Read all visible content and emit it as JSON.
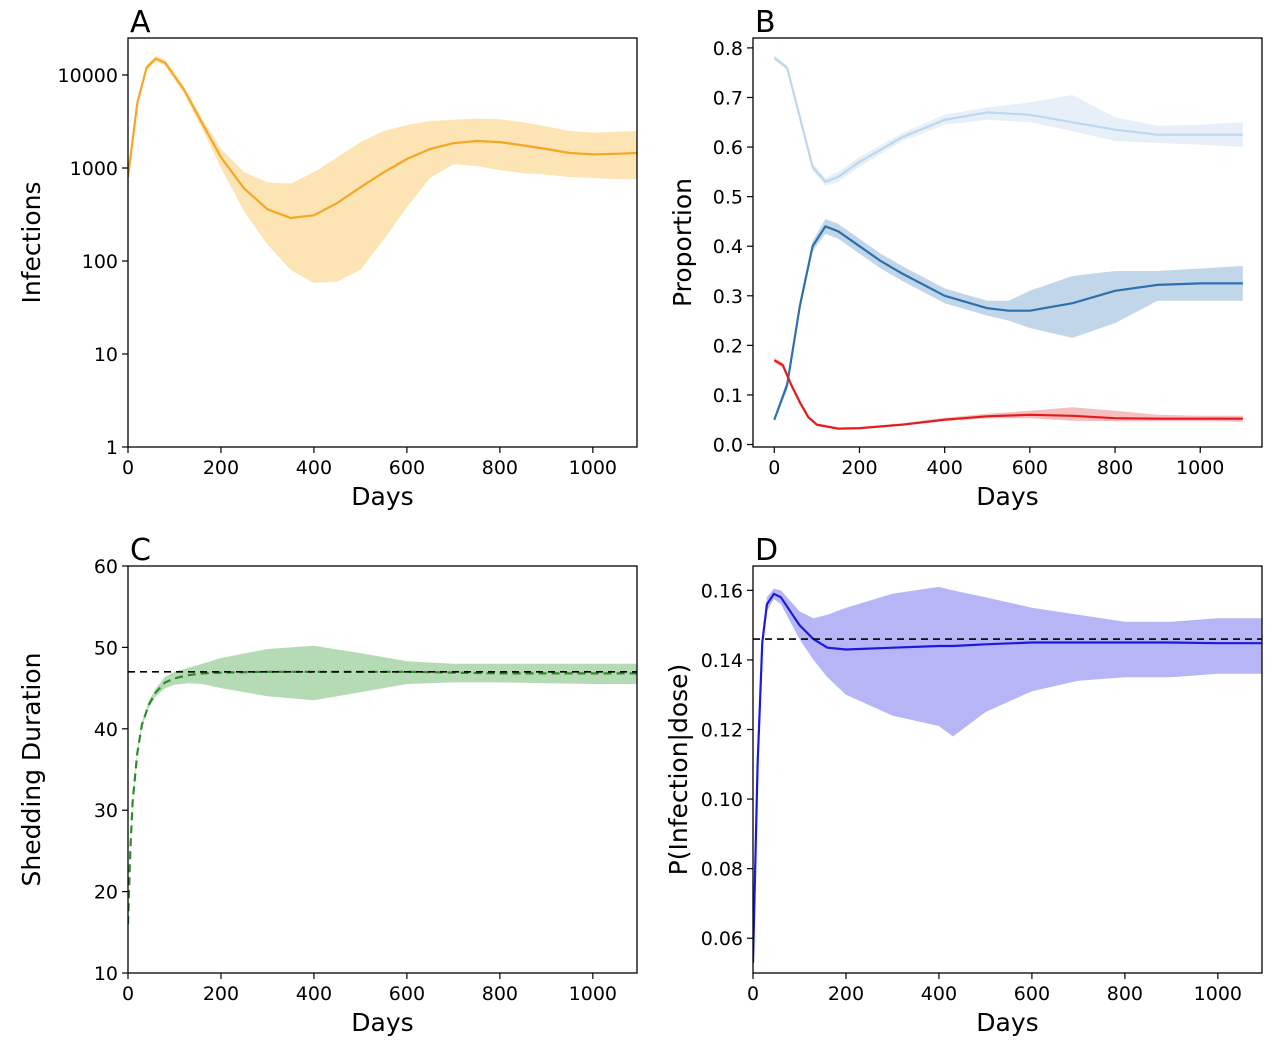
{
  "chart_data": [
    {
      "panel": "A",
      "type": "line",
      "xlabel": "Days",
      "ylabel": "Infections",
      "yscale": "log",
      "xlim": [
        0,
        1095
      ],
      "ylim": [
        1,
        25000
      ],
      "xticks": [
        "0",
        "200",
        "400",
        "600",
        "800",
        "1000"
      ],
      "yticks": [
        "1",
        "10",
        "100",
        "1000",
        "10000"
      ],
      "grid": false,
      "series": [
        {
          "color": "#f5a623",
          "band_color": "#fddfa8",
          "x": [
            0,
            20,
            40,
            60,
            80,
            120,
            160,
            200,
            250,
            300,
            350,
            400,
            450,
            500,
            550,
            600,
            650,
            700,
            750,
            800,
            850,
            900,
            950,
            1000,
            1050,
            1095
          ],
          "y": [
            800,
            5000,
            12000,
            15000,
            13500,
            7000,
            3000,
            1300,
            600,
            360,
            290,
            310,
            420,
            620,
            900,
            1250,
            1600,
            1850,
            1950,
            1900,
            1750,
            1600,
            1450,
            1400,
            1420,
            1450
          ],
          "lower": [
            750,
            4600,
            11200,
            14000,
            12500,
            6400,
            2600,
            1000,
            340,
            150,
            80,
            58,
            60,
            80,
            170,
            380,
            780,
            1100,
            1050,
            950,
            880,
            850,
            800,
            780,
            760,
            760
          ],
          "upper": [
            850,
            5400,
            12800,
            16000,
            14500,
            7600,
            3400,
            1600,
            900,
            700,
            680,
            900,
            1300,
            1900,
            2500,
            2900,
            3200,
            3300,
            3400,
            3350,
            3100,
            2800,
            2500,
            2400,
            2450,
            2500
          ]
        }
      ]
    },
    {
      "panel": "B",
      "type": "line",
      "xlabel": "Days",
      "ylabel": "Proportion",
      "xlim": [
        -50,
        1145
      ],
      "ylim": [
        -0.005,
        0.82
      ],
      "xticks": [
        "0",
        "200",
        "400",
        "600",
        "800",
        "1000"
      ],
      "yticks": [
        "0.0",
        "0.1",
        "0.2",
        "0.3",
        "0.4",
        "0.5",
        "0.6",
        "0.7",
        "0.8"
      ],
      "grid": false,
      "series": [
        {
          "color": "#bdd7ee",
          "band_color": "#e3edf8",
          "x": [
            0,
            30,
            60,
            90,
            120,
            150,
            200,
            300,
            400,
            500,
            600,
            700,
            800,
            900,
            1000,
            1100
          ],
          "y": [
            0.78,
            0.76,
            0.66,
            0.56,
            0.53,
            0.54,
            0.57,
            0.62,
            0.655,
            0.67,
            0.665,
            0.65,
            0.635,
            0.625,
            0.625,
            0.625
          ],
          "lower": [
            0.775,
            0.755,
            0.655,
            0.553,
            0.522,
            0.53,
            0.56,
            0.612,
            0.645,
            0.655,
            0.65,
            0.632,
            0.612,
            0.608,
            0.605,
            0.6
          ],
          "upper": [
            0.785,
            0.765,
            0.665,
            0.567,
            0.538,
            0.55,
            0.58,
            0.628,
            0.665,
            0.68,
            0.69,
            0.705,
            0.66,
            0.643,
            0.645,
            0.65
          ]
        },
        {
          "color": "#2e6fad",
          "band_color": "#b7cfe6",
          "x": [
            0,
            30,
            60,
            90,
            120,
            150,
            200,
            250,
            300,
            400,
            500,
            550,
            600,
            700,
            800,
            900,
            1000,
            1100
          ],
          "y": [
            0.05,
            0.12,
            0.28,
            0.4,
            0.44,
            0.43,
            0.4,
            0.37,
            0.345,
            0.3,
            0.275,
            0.27,
            0.27,
            0.285,
            0.31,
            0.322,
            0.325,
            0.325
          ],
          "lower": [
            0.045,
            0.11,
            0.27,
            0.39,
            0.425,
            0.415,
            0.385,
            0.355,
            0.33,
            0.285,
            0.26,
            0.25,
            0.235,
            0.215,
            0.245,
            0.29,
            0.29,
            0.29
          ],
          "upper": [
            0.055,
            0.13,
            0.29,
            0.41,
            0.455,
            0.445,
            0.415,
            0.385,
            0.36,
            0.315,
            0.29,
            0.29,
            0.31,
            0.34,
            0.35,
            0.35,
            0.355,
            0.36
          ]
        },
        {
          "color": "#e41a1c",
          "band_color": "#f4b3b4",
          "x": [
            0,
            20,
            40,
            60,
            80,
            100,
            150,
            200,
            300,
            400,
            500,
            600,
            700,
            800,
            900,
            1000,
            1100
          ],
          "y": [
            0.17,
            0.16,
            0.12,
            0.085,
            0.055,
            0.04,
            0.032,
            0.033,
            0.04,
            0.05,
            0.057,
            0.06,
            0.058,
            0.053,
            0.052,
            0.052,
            0.052
          ],
          "lower": [
            0.165,
            0.155,
            0.115,
            0.08,
            0.052,
            0.037,
            0.03,
            0.031,
            0.038,
            0.047,
            0.053,
            0.053,
            0.048,
            0.047,
            0.047,
            0.047,
            0.046
          ],
          "upper": [
            0.175,
            0.165,
            0.125,
            0.09,
            0.058,
            0.043,
            0.035,
            0.036,
            0.043,
            0.054,
            0.062,
            0.068,
            0.075,
            0.068,
            0.06,
            0.058,
            0.058
          ]
        }
      ]
    },
    {
      "panel": "C",
      "type": "line",
      "xlabel": "Days",
      "ylabel": "Shedding Duration",
      "xlim": [
        0,
        1095
      ],
      "ylim": [
        10,
        60
      ],
      "xticks": [
        "0",
        "200",
        "400",
        "600",
        "800",
        "1000"
      ],
      "yticks": [
        "10",
        "20",
        "30",
        "40",
        "50",
        "60"
      ],
      "grid": false,
      "reference_line": 47,
      "series": [
        {
          "color": "#2e8b2e",
          "band_color": "#a8d5a8",
          "line_style": "dashed",
          "x": [
            0,
            5,
            10,
            20,
            30,
            45,
            60,
            80,
            100,
            130,
            160,
            200,
            300,
            400,
            500,
            600,
            700,
            800,
            900,
            1000,
            1095
          ],
          "y": [
            16,
            25,
            31,
            37,
            40.5,
            43,
            44.5,
            45.7,
            46.2,
            46.6,
            46.8,
            46.9,
            47,
            47,
            47,
            47,
            46.9,
            46.8,
            46.8,
            46.8,
            46.8
          ],
          "lower": [
            15.8,
            24.7,
            30.7,
            36.7,
            40.2,
            42.6,
            44,
            45,
            45.4,
            45.6,
            45.5,
            45,
            44,
            43.5,
            44.5,
            45.5,
            45.7,
            45.7,
            45.6,
            45.5,
            45.5
          ],
          "upper": [
            16.2,
            25.3,
            31.3,
            37.3,
            40.8,
            43.4,
            45,
            46.4,
            47,
            47.5,
            48,
            48.7,
            49.8,
            50.2,
            49.3,
            48.3,
            48,
            48,
            48,
            48,
            48
          ]
        }
      ]
    },
    {
      "panel": "D",
      "type": "line",
      "xlabel": "Days",
      "ylabel": "P(Infection|dose)",
      "xlim": [
        0,
        1095
      ],
      "ylim": [
        0.05,
        0.167
      ],
      "xticks": [
        "0",
        "200",
        "400",
        "600",
        "800",
        "1000"
      ],
      "yticks": [
        "0.06",
        "0.08",
        "0.10",
        "0.12",
        "0.14",
        "0.16"
      ],
      "grid": false,
      "reference_line": 0.146,
      "series": [
        {
          "color": "#1a1adb",
          "band_color": "#a9a9f5",
          "x": [
            0,
            10,
            20,
            30,
            45,
            60,
            80,
            100,
            130,
            160,
            200,
            300,
            400,
            430,
            500,
            600,
            700,
            800,
            900,
            1000,
            1095
          ],
          "y": [
            0.053,
            0.11,
            0.145,
            0.156,
            0.159,
            0.158,
            0.154,
            0.15,
            0.146,
            0.1435,
            0.143,
            0.1435,
            0.144,
            0.144,
            0.1445,
            0.145,
            0.145,
            0.145,
            0.145,
            0.1448,
            0.1448
          ],
          "lower": [
            0.052,
            0.108,
            0.143,
            0.154,
            0.1575,
            0.156,
            0.151,
            0.146,
            0.14,
            0.135,
            0.13,
            0.124,
            0.121,
            0.118,
            0.125,
            0.131,
            0.134,
            0.135,
            0.135,
            0.136,
            0.136
          ],
          "upper": [
            0.054,
            0.112,
            0.147,
            0.158,
            0.1605,
            0.16,
            0.157,
            0.154,
            0.152,
            0.153,
            0.155,
            0.159,
            0.161,
            0.16,
            0.158,
            0.155,
            0.153,
            0.151,
            0.151,
            0.152,
            0.152
          ]
        }
      ]
    }
  ]
}
